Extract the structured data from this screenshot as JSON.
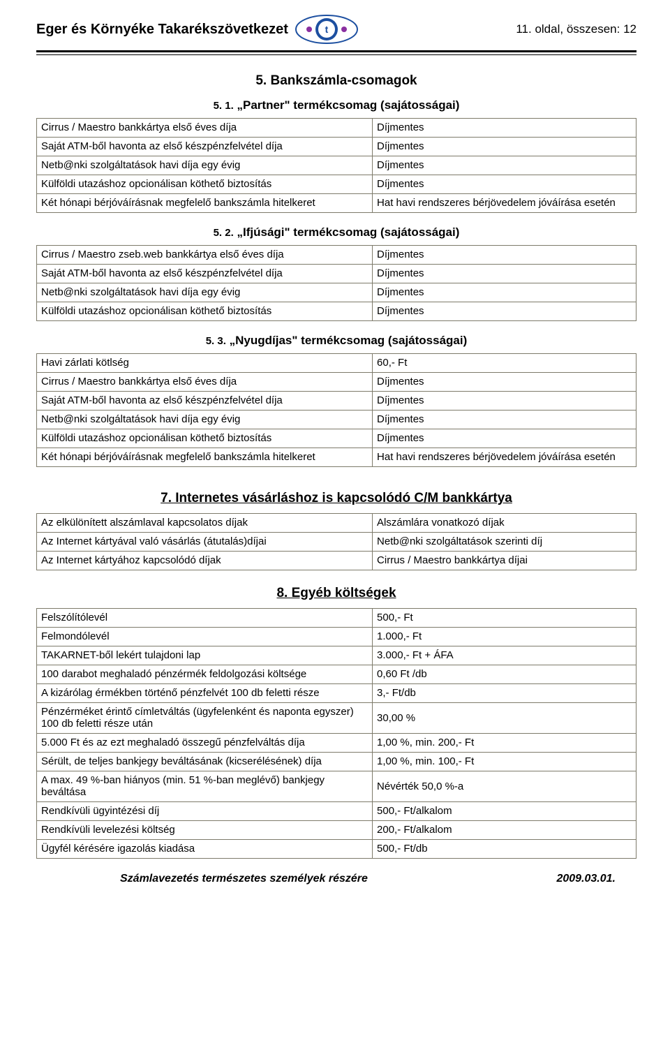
{
  "header": {
    "org": "Eger és Környéke Takarékszövetkezet",
    "page_label": "11. oldal, összesen: 12",
    "logo_bg": "#ffffff",
    "logo_ring": "#1c4fa0",
    "logo_accent": "#8a2fa0"
  },
  "sec5": {
    "title": "5. Bankszámla-csomagok",
    "t1": {
      "title_num": "5. 1.",
      "title_txt": "„Partner\" termékcsomag (sajátosságai)",
      "rows": [
        [
          "Cirrus / Maestro bankkártya első éves díja",
          "Díjmentes"
        ],
        [
          "Saját ATM-ből havonta az első készpénzfelvétel díja",
          "Díjmentes"
        ],
        [
          "Netb@nki szolgáltatások havi díja egy évig",
          "Díjmentes"
        ],
        [
          "Külföldi utazáshoz opcionálisan köthető biztosítás",
          "Díjmentes"
        ],
        [
          "Két hónapi bérjóváírásnak megfelelő bankszámla hitelkeret",
          "Hat havi rendszeres bérjövedelem jóváírása esetén"
        ]
      ]
    },
    "t2": {
      "title_num": "5. 2.",
      "title_txt": "„Ifjúsági\" termékcsomag (sajátosságai)",
      "rows": [
        [
          "Cirrus / Maestro zseb.web bankkártya első éves díja",
          "Díjmentes"
        ],
        [
          "Saját ATM-ből havonta az első készpénzfelvétel díja",
          "Díjmentes"
        ],
        [
          "Netb@nki szolgáltatások havi díja egy évig",
          "Díjmentes"
        ],
        [
          "Külföldi utazáshoz opcionálisan köthető biztosítás",
          "Díjmentes"
        ]
      ]
    },
    "t3": {
      "title_num": "5. 3.",
      "title_txt": "„Nyugdíjas\" termékcsomag (sajátosságai)",
      "rows": [
        [
          "Havi zárlati kötlség",
          "60,- Ft"
        ],
        [
          "Cirrus / Maestro bankkártya első éves díja",
          "Díjmentes"
        ],
        [
          "Saját ATM-ből havonta az első készpénzfelvétel díja",
          "Díjmentes"
        ],
        [
          "Netb@nki szolgáltatások havi díja egy évig",
          "Díjmentes"
        ],
        [
          "Külföldi utazáshoz opcionálisan köthető biztosítás",
          "Díjmentes"
        ],
        [
          "Két hónapi bérjóváírásnak megfelelő bankszámla hitelkeret",
          "Hat havi rendszeres bérjövedelem jóváírása esetén"
        ]
      ]
    }
  },
  "sec7": {
    "title": "7. Internetes vásárláshoz is kapcsolódó C/M bankkártya",
    "rows": [
      [
        "Az elkülönített alszámlaval kapcsolatos díjak",
        "Alszámlára vonatkozó díjak"
      ],
      [
        "Az Internet kártyával való vásárlás (átutalás)díjai",
        "Netb@nki szolgáltatások szerinti díj"
      ],
      [
        "Az Internet kártyához kapcsolódó díjak",
        "Cirrus / Maestro bankkártya díjai"
      ]
    ]
  },
  "sec8": {
    "title": "8. Egyéb költségek",
    "rows": [
      [
        "Felszólítólevél",
        "500,- Ft"
      ],
      [
        "Felmondólevél",
        "1.000,- Ft"
      ],
      [
        "TAKARNET-ből lekért tulajdoni lap",
        "3.000,- Ft + ÁFA"
      ],
      [
        "100 darabot meghaladó pénzérmék feldolgozási költsége",
        "0,60 Ft /db"
      ],
      [
        "A kizárólag érmékben történő pénzfelvét 100 db feletti része",
        "3,- Ft/db"
      ],
      [
        "Pénzérméket érintő címletváltás (ügyfelenként és naponta egyszer) 100 db feletti része után",
        "30,00 %"
      ],
      [
        "5.000 Ft és az ezt meghaladó összegű pénzfelváltás díja",
        "1,00 %, min. 200,- Ft"
      ],
      [
        "Sérült, de teljes bankjegy beváltásának (kicserélésének) díja",
        "1,00 %, min. 100,- Ft"
      ],
      [
        "A max. 49 %-ban hiányos (min. 51 %-ban meglévő) bankjegy beváltása",
        "Névérték 50,0 %-a"
      ],
      [
        "Rendkívüli ügyintézési díj",
        "500,- Ft/alkalom"
      ],
      [
        "Rendkívüli levelezési költség",
        "200,- Ft/alkalom"
      ],
      [
        "Ügyfél kérésére igazolás kiadása",
        "500,- Ft/db"
      ]
    ]
  },
  "footer": {
    "left": "Számlavezetés természetes személyek részére",
    "right": "2009.03.01."
  },
  "table_widths": {
    "col1_pct": 56,
    "col2_pct": 44
  },
  "colors": {
    "border": "#7d7a6a",
    "text": "#000000",
    "bg": "#ffffff"
  }
}
